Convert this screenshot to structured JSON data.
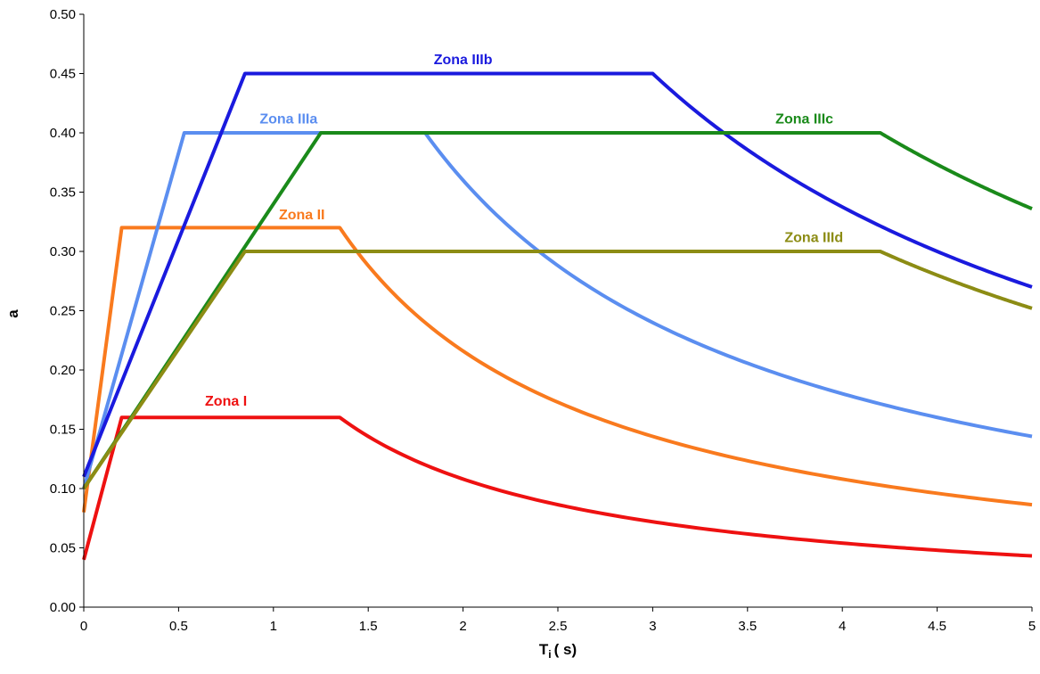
{
  "chart_data": {
    "type": "line",
    "title": "",
    "xlabel_main": "T",
    "xlabel_sub": "i",
    "xlabel_units": "( s)",
    "ylabel": "a",
    "xlim": [
      0,
      5
    ],
    "ylim": [
      0,
      0.5
    ],
    "x_ticks": [
      "0",
      "0.5",
      "1",
      "1.5",
      "2",
      "2.5",
      "3",
      "3.5",
      "4",
      "4.5",
      "5"
    ],
    "y_ticks": [
      "0.00",
      "0.05",
      "0.10",
      "0.15",
      "0.20",
      "0.25",
      "0.30",
      "0.35",
      "0.40",
      "0.45",
      "0.50"
    ],
    "grid": false,
    "legend": "inline labels",
    "series": [
      {
        "name": "Zona I",
        "color": "#ee1111",
        "a0": 0.04,
        "amax": 0.16,
        "t1": 0.2,
        "t2": 1.35,
        "label_pos": [
          0.75,
          0.17
        ]
      },
      {
        "name": "Zona II",
        "color": "#f97a1e",
        "a0": 0.08,
        "amax": 0.32,
        "t1": 0.2,
        "t2": 1.35,
        "label_pos": [
          1.15,
          0.327
        ]
      },
      {
        "name": "Zona IIIa",
        "color": "#5b8ef0",
        "a0": 0.1,
        "amax": 0.4,
        "t1": 0.53,
        "t2": 1.8,
        "label_pos": [
          1.08,
          0.408
        ]
      },
      {
        "name": "Zona IIIb",
        "color": "#1a1ade",
        "a0": 0.11,
        "amax": 0.45,
        "t1": 0.85,
        "t2": 3.0,
        "label_pos": [
          2.0,
          0.458
        ]
      },
      {
        "name": "Zona IIIc",
        "color": "#1a8a1a",
        "a0": 0.1,
        "amax": 0.4,
        "t1": 1.25,
        "t2": 4.2,
        "label_pos": [
          3.8,
          0.408
        ]
      },
      {
        "name": "Zona IIId",
        "color": "#8c8c14",
        "a0": 0.1,
        "amax": 0.3,
        "t1": 0.85,
        "t2": 4.2,
        "label_pos": [
          3.85,
          0.308
        ]
      }
    ]
  }
}
